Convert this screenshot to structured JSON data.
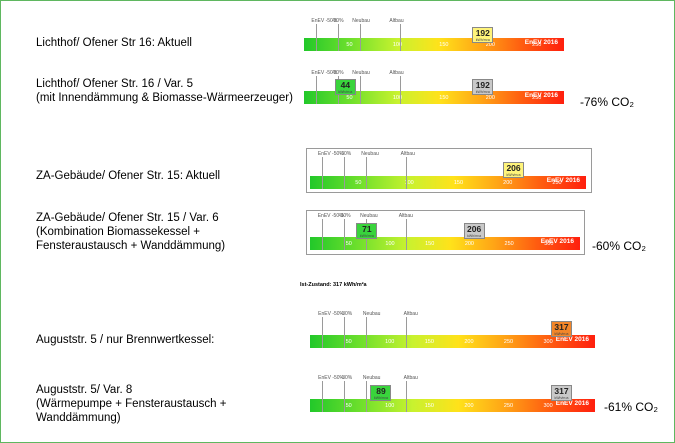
{
  "rows": [
    {
      "label_lines": [
        "Lichthof/ Ofener Str 16: Aktuell"
      ],
      "saving_value": "",
      "saving_unit": "",
      "markers": [
        {
          "value": "192",
          "unit": "kWh/m²a",
          "color": "#fff47a"
        }
      ],
      "scale": {
        "ticks": [
          "50",
          "100",
          "150",
          "200",
          "250"
        ],
        "top_ticks": [
          "EnEV -50%",
          "-30%",
          "Neubau",
          "Altbau"
        ],
        "enev": "EnEV 2016"
      }
    },
    {
      "label_lines": [
        "Lichthof/ Ofener Str. 16 / Var. 5",
        "(mit Innendämmung & Biomasse-Wärmeerzeuger)"
      ],
      "saving_value": "-76%",
      "saving_unit": "CO₂",
      "markers": [
        {
          "value": "44",
          "unit": "kWh/m²a",
          "color": "#39d43c"
        },
        {
          "value": "192",
          "unit": "kWh/m²a",
          "color": "#c9c9c9"
        }
      ],
      "scale": {
        "ticks": [
          "50",
          "100",
          "150",
          "200",
          "250"
        ],
        "top_ticks": [
          "EnEV -50%",
          "-30%",
          "Neubau",
          "Altbau"
        ],
        "enev": "EnEV 2016"
      }
    },
    {
      "label_lines": [
        "ZA-Gebäude/ Ofener Str. 15: Aktuell"
      ],
      "saving_value": "",
      "saving_unit": "",
      "markers": [
        {
          "value": "206",
          "unit": "kWh/m²a",
          "color": "#fff47a"
        }
      ],
      "scale": {
        "ticks": [
          "50",
          "100",
          "150",
          "200",
          "250"
        ],
        "top_ticks": [
          "EnEV -50%",
          "-30%",
          "Neubau",
          "Altbau"
        ],
        "enev": "EnEV 2016"
      }
    },
    {
      "label_lines": [
        "ZA-Gebäude/ Ofener Str. 15 / Var. 6",
        "(Kombination Biomassekessel +",
        "Fensteraustausch + Wanddämmung)"
      ],
      "saving_value": "-60%",
      "saving_unit": "CO₂",
      "markers": [
        {
          "value": "71",
          "unit": "kWh/m²a",
          "color": "#39d43c"
        },
        {
          "value": "206",
          "unit": "kWh/m²a",
          "color": "#c9c9c9"
        }
      ],
      "scale": {
        "ticks": [
          "50",
          "100",
          "150",
          "200",
          "250",
          "300"
        ],
        "top_ticks": [
          "EnEV -50%",
          "-30%",
          "Neubau",
          "Altbau"
        ],
        "enev": "EnEV 2016"
      }
    },
    {
      "label_lines": [
        "Auguststr. 5 / nur Brennwertkessel:"
      ],
      "saving_value": "",
      "saving_unit": "",
      "markers": [
        {
          "value": "317",
          "unit": "kWh/m²a",
          "color": "#f2862a"
        }
      ],
      "scale": {
        "ticks": [
          "50",
          "100",
          "150",
          "200",
          "250",
          "300"
        ],
        "top_ticks": [
          "EnEV -50%",
          "-30%",
          "Neubau",
          "Altbau"
        ],
        "enev": "EnEV 2016"
      }
    },
    {
      "label_lines": [
        "Auguststr. 5/  Var. 8",
        "(Wärmepumpe + Fensteraustausch +",
        "Wanddämmung)"
      ],
      "saving_value": "-61%",
      "saving_unit": "CO₂",
      "markers": [
        {
          "value": "89",
          "unit": "kWh/m²a",
          "color": "#39d43c"
        },
        {
          "value": "317",
          "unit": "kWh/m²a",
          "color": "#c9c9c9"
        }
      ],
      "scale": {
        "ticks": [
          "50",
          "100",
          "150",
          "200",
          "250",
          "300"
        ],
        "top_ticks": [
          "EnEV -50%",
          "-30%",
          "Neubau",
          "Altbau"
        ],
        "enev": "EnEV 2016"
      }
    }
  ],
  "ist_note": "Ist-Zustand:  317 kWh/m²a"
}
